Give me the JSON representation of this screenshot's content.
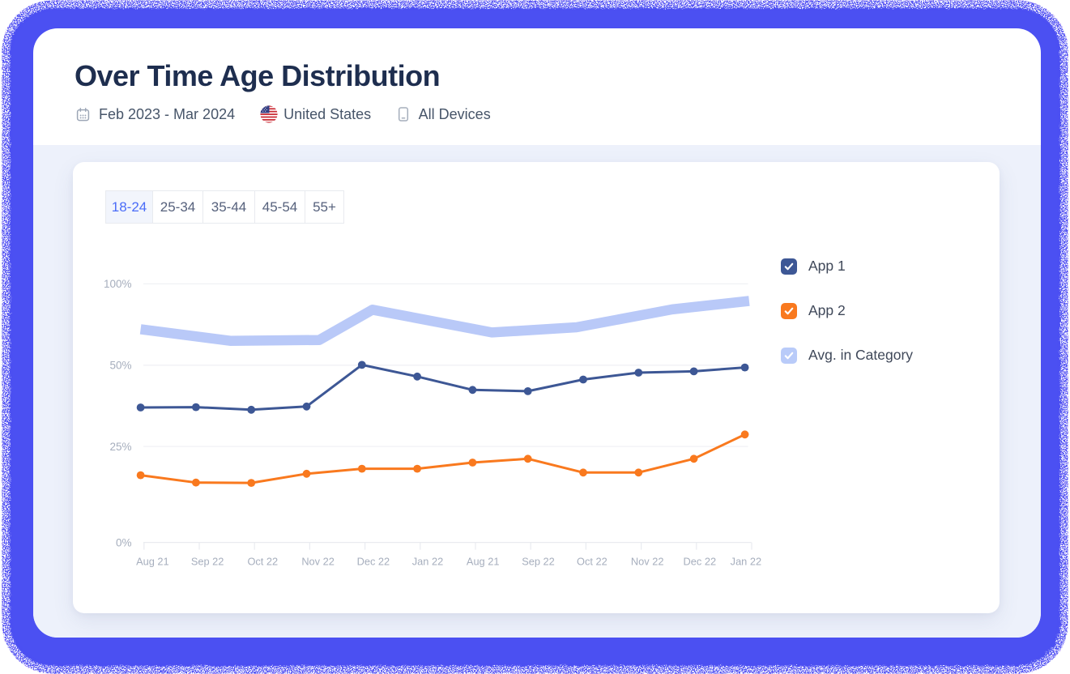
{
  "page": {
    "title": "Over Time Age Distribution",
    "meta": {
      "date_range": "Feb 2023 - Mar 2024",
      "country": "United States",
      "devices": "All Devices",
      "calendar_icon": "calendar-icon",
      "country_icon": "us-flag-icon",
      "devices_icon": "mobile-device-icon"
    },
    "tabs": [
      {
        "label": "18-24",
        "selected": true
      },
      {
        "label": "25-34",
        "selected": false
      },
      {
        "label": "35-44",
        "selected": false
      },
      {
        "label": "45-54",
        "selected": false
      },
      {
        "label": "55+",
        "selected": false
      }
    ]
  },
  "legend": [
    {
      "label": "App 1",
      "color": "#3d5795",
      "checked": true
    },
    {
      "label": "App 2",
      "color": "#f9791e",
      "checked": true
    },
    {
      "label": "Avg. in Category",
      "color": "#b9cbf9",
      "checked": true
    }
  ],
  "colors": {
    "frame_blue": "#4b50f2",
    "frame_violet": "#8b5cf6",
    "panel_lavender": "#edf1fb",
    "title_navy": "#1e2e4f",
    "gridline": "#f0f1f5",
    "axis_line": "#e9ebf0",
    "axis_label": "#a6aebd"
  },
  "chart_data": {
    "type": "line",
    "title": "",
    "xlabel": "",
    "ylabel": "",
    "x_labels": [
      "Aug 21",
      "Sep 22",
      "Oct 22",
      "Nov 22",
      "Dec 22",
      "Jan 22",
      "Aug 21",
      "Sep 22",
      "Oct 22",
      "Nov 22",
      "Dec 22",
      "Jan 22"
    ],
    "y_ticks": [
      {
        "label": "100%",
        "value": 100
      },
      {
        "label": "50%",
        "value": 50
      },
      {
        "label": "25%",
        "value": 25
      },
      {
        "label": "0%",
        "value": 0
      }
    ],
    "grid": true,
    "legend_position": "right",
    "series": [
      {
        "name": "App 1",
        "color": "#3d5795",
        "marker": "dot",
        "values": [
          37.0,
          37.1,
          36.3,
          37.3,
          50.2,
          46.5,
          42.4,
          42.0,
          45.6,
          47.7,
          48.1,
          49.3
        ]
      },
      {
        "name": "App 2",
        "color": "#f9791e",
        "marker": "dot",
        "values": [
          17.5,
          15.6,
          15.5,
          17.9,
          19.2,
          19.2,
          20.8,
          21.8,
          18.2,
          18.2,
          21.8,
          28.7
        ]
      },
      {
        "name": "Avg. in Category",
        "color": "#b9c9f8",
        "marker": "none",
        "band": true,
        "x": [
          0,
          1.62,
          3.23,
          4.19,
          6.35,
          7.88,
          9.61,
          11
        ],
        "values": [
          72.1,
          65.0,
          65.5,
          84.1,
          70.1,
          73.3,
          84.3,
          89.5
        ]
      }
    ]
  }
}
